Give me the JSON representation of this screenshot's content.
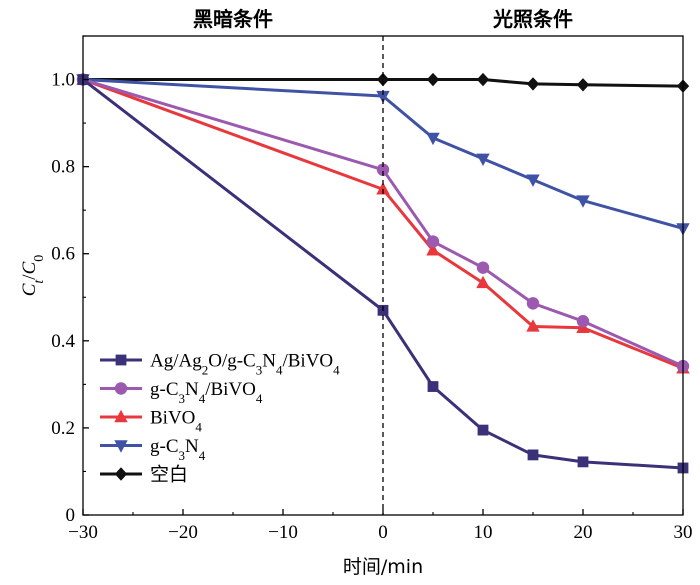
{
  "chart_data": {
    "type": "line",
    "xlabel": "时间/min",
    "ylabel_parts": [
      "C",
      "t",
      "/",
      "C",
      "0"
    ],
    "xlim": [
      -30,
      30
    ],
    "ylim": [
      0,
      1.1
    ],
    "xticks": [
      "−30",
      "−20",
      "−10",
      "0",
      "10",
      "20",
      "30"
    ],
    "xtick_values": [
      -30,
      -20,
      -10,
      0,
      10,
      20,
      30
    ],
    "yticks": [
      "0",
      "0.2",
      "0.4",
      "0.6",
      "0.8",
      "1.0"
    ],
    "ytick_values": [
      0,
      0.2,
      0.4,
      0.6,
      0.8,
      1.0
    ],
    "grid": false,
    "legend_position": "lower-left",
    "divider_x": 0,
    "regions": [
      "黑暗条件",
      "光照条件"
    ],
    "series": [
      {
        "name": "Ag/Ag2O/g-C3N4/BiVO4",
        "legend_parts": [
          [
            "Ag/Ag",
            ""
          ],
          [
            "2",
            "sub"
          ],
          [
            "O/g-C",
            ""
          ],
          [
            "3",
            "sub"
          ],
          [
            "N",
            ""
          ],
          [
            "4",
            "sub"
          ],
          [
            "/BiVO",
            ""
          ],
          [
            "4",
            "sub"
          ]
        ],
        "color": "#3a3178",
        "marker": "square",
        "x": [
          -30,
          0,
          5,
          10,
          15,
          20,
          30
        ],
        "y": [
          1.0,
          0.47,
          0.295,
          0.195,
          0.138,
          0.122,
          0.108
        ]
      },
      {
        "name": "g-C3N4/BiVO4",
        "legend_parts": [
          [
            "g-C",
            ""
          ],
          [
            "3",
            "sub"
          ],
          [
            "N",
            ""
          ],
          [
            "4",
            "sub"
          ],
          [
            "/BiVO",
            ""
          ],
          [
            "4",
            "sub"
          ]
        ],
        "color": "#9b59b0",
        "marker": "circle",
        "x": [
          -30,
          0,
          5,
          10,
          15,
          20,
          30
        ],
        "y": [
          1.0,
          0.793,
          0.628,
          0.568,
          0.486,
          0.445,
          0.342
        ]
      },
      {
        "name": "BiVO4",
        "legend_parts": [
          [
            "BiVO",
            ""
          ],
          [
            "4",
            "sub"
          ]
        ],
        "color": "#e8383d",
        "marker": "triangle-up",
        "x": [
          -30,
          0,
          5,
          10,
          15,
          20,
          30
        ],
        "y": [
          1.0,
          0.748,
          0.608,
          0.533,
          0.433,
          0.43,
          0.337
        ]
      },
      {
        "name": "g-C3N4",
        "legend_parts": [
          [
            "g-C",
            ""
          ],
          [
            "3",
            "sub"
          ],
          [
            "N",
            ""
          ],
          [
            "4",
            "sub"
          ]
        ],
        "color": "#3f52a6",
        "marker": "triangle-down",
        "x": [
          -30,
          0,
          5,
          10,
          15,
          20,
          30
        ],
        "y": [
          1.0,
          0.962,
          0.866,
          0.818,
          0.77,
          0.722,
          0.658
        ]
      },
      {
        "name": "空白",
        "legend_parts": [
          [
            "空白",
            "cjk"
          ]
        ],
        "color": "#111111",
        "marker": "diamond",
        "x": [
          -30,
          0,
          5,
          10,
          15,
          20,
          30
        ],
        "y": [
          1.0,
          1.0,
          1.0,
          1.0,
          0.99,
          0.988,
          0.985
        ]
      }
    ]
  }
}
